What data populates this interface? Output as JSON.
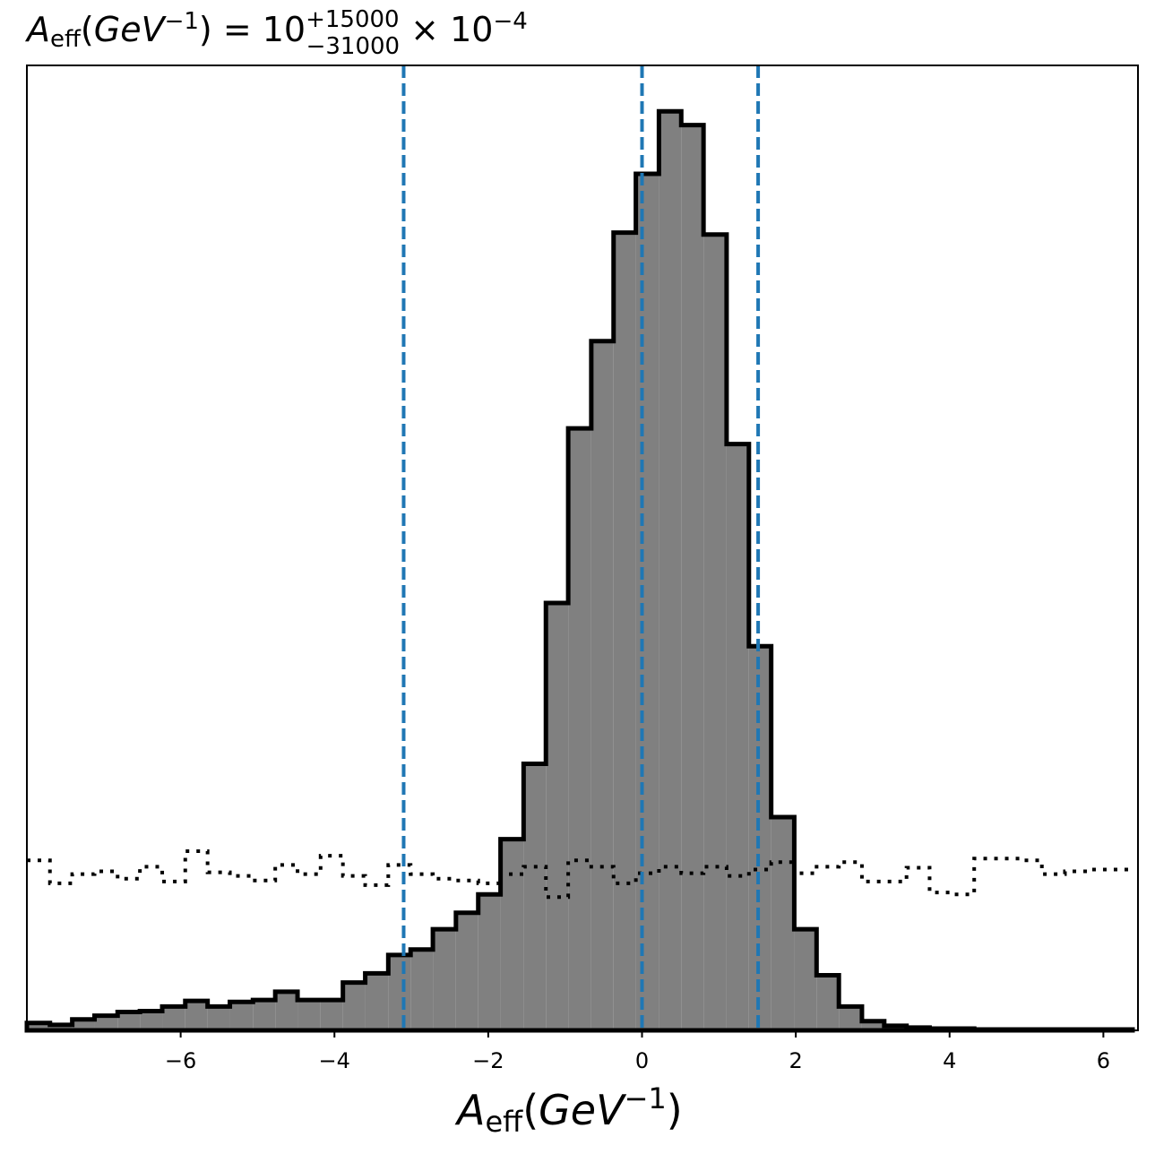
{
  "chart_data": {
    "type": "histogram",
    "title": {
      "symbol": "A",
      "symbol_sub": "eff",
      "unit_base": "GeV",
      "unit_exp": "−1",
      "equals": " = 10",
      "upper": "+15000",
      "lower": "−31000",
      "tail": " × 10",
      "tail_exp": "−4"
    },
    "xlabel": {
      "symbol": "A",
      "symbol_sub": "eff",
      "unit_base": "GeV",
      "unit_exp": "−1"
    },
    "ylabel": "",
    "xlim": [
      -8.0,
      6.45
    ],
    "ylim": [
      0,
      1.05
    ],
    "xticks": [
      -6,
      -4,
      -2,
      0,
      2,
      4,
      6
    ],
    "xtick_labels": [
      "−6",
      "−4",
      "−2",
      "0",
      "2",
      "4",
      "6"
    ],
    "y_ticks_shown": false,
    "bin_edges": [
      -8.0,
      -7.7,
      -7.41,
      -7.12,
      -6.82,
      -6.53,
      -6.24,
      -5.94,
      -5.65,
      -5.36,
      -5.06,
      -4.77,
      -4.48,
      -4.18,
      -3.89,
      -3.6,
      -3.3,
      -3.01,
      -2.72,
      -2.42,
      -2.13,
      -1.84,
      -1.54,
      -1.25,
      -0.96,
      -0.66,
      -0.37,
      -0.08,
      0.22,
      0.51,
      0.8,
      1.1,
      1.39,
      1.68,
      1.98,
      2.27,
      2.56,
      2.86,
      3.15,
      3.44,
      3.74,
      4.03,
      4.32,
      4.62,
      4.91,
      5.2,
      5.5,
      5.79,
      6.08,
      6.38
    ],
    "series": [
      {
        "kind": "filled-step",
        "values": [
          0.008,
          0.006,
          0.012,
          0.016,
          0.02,
          0.021,
          0.026,
          0.032,
          0.026,
          0.031,
          0.033,
          0.042,
          0.033,
          0.033,
          0.052,
          0.062,
          0.082,
          0.088,
          0.11,
          0.128,
          0.148,
          0.208,
          0.29,
          0.465,
          0.655,
          0.75,
          0.868,
          0.932,
          1.0,
          0.985,
          0.866,
          0.638,
          0.418,
          0.232,
          0.11,
          0.06,
          0.026,
          0.01,
          0.005,
          0.003,
          0.002,
          0.002,
          0.001,
          0.001,
          0.001,
          0.001,
          0.001,
          0.001,
          0.001
        ],
        "fill": "#808080",
        "stroke": "#000000"
      },
      {
        "kind": "dotted-step",
        "values": [
          0.185,
          0.16,
          0.17,
          0.173,
          0.165,
          0.178,
          0.162,
          0.195,
          0.172,
          0.168,
          0.163,
          0.18,
          0.17,
          0.19,
          0.168,
          0.158,
          0.18,
          0.17,
          0.165,
          0.163,
          0.16,
          0.17,
          0.178,
          0.145,
          0.185,
          0.178,
          0.16,
          0.171,
          0.178,
          0.171,
          0.178,
          0.168,
          0.175,
          0.183,
          0.171,
          0.178,
          0.183,
          0.162,
          0.162,
          0.177,
          0.15,
          0.148,
          0.187,
          0.187,
          0.185,
          0.17,
          0.173,
          0.175,
          0.175
        ],
        "stroke": "#000000"
      }
    ],
    "vertical_lines": [
      {
        "x": -3.1,
        "color": "#1f77b4",
        "style": "dashed"
      },
      {
        "x": 0.0,
        "color": "#1f77b4",
        "style": "dashed"
      },
      {
        "x": 1.51,
        "color": "#1f77b4",
        "style": "dashed"
      }
    ],
    "grid": false,
    "legend": "none"
  }
}
